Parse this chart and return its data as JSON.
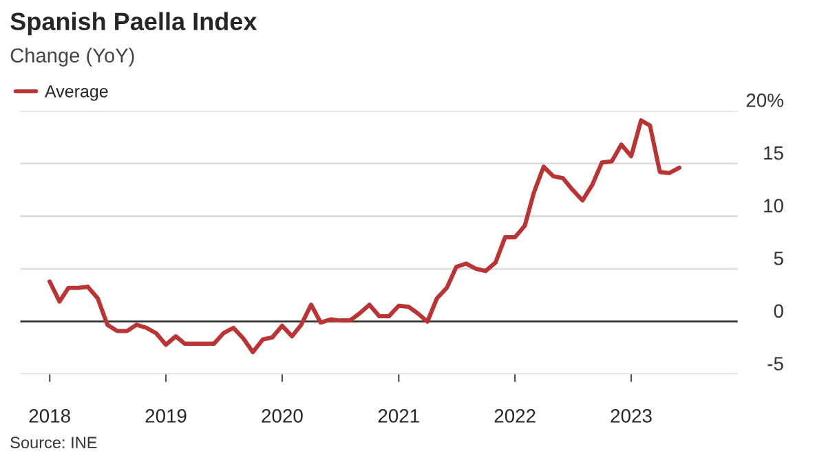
{
  "chart_data": {
    "type": "line",
    "title": "Spanish Paella Index",
    "subtitle": "Change (YoY)",
    "x": [
      "2018-01",
      "2018-02",
      "2018-03",
      "2018-04",
      "2018-05",
      "2018-06",
      "2018-07",
      "2018-08",
      "2018-09",
      "2018-10",
      "2018-11",
      "2018-12",
      "2019-01",
      "2019-02",
      "2019-03",
      "2019-04",
      "2019-05",
      "2019-06",
      "2019-07",
      "2019-08",
      "2019-09",
      "2019-10",
      "2019-11",
      "2019-12",
      "2020-01",
      "2020-02",
      "2020-03",
      "2020-04",
      "2020-05",
      "2020-06",
      "2020-07",
      "2020-08",
      "2020-09",
      "2020-10",
      "2020-11",
      "2020-12",
      "2021-01",
      "2021-02",
      "2021-03",
      "2021-04",
      "2021-05",
      "2021-06",
      "2021-07",
      "2021-08",
      "2021-09",
      "2021-10",
      "2021-11",
      "2021-12",
      "2022-01",
      "2022-02",
      "2022-03",
      "2022-04",
      "2022-05",
      "2022-06",
      "2022-07",
      "2022-08",
      "2022-09",
      "2022-10",
      "2022-11",
      "2022-12",
      "2023-01",
      "2023-02",
      "2023-03",
      "2023-04",
      "2023-05",
      "2023-06"
    ],
    "series": [
      {
        "name": "Average",
        "color": "#b93434",
        "values": [
          3.8,
          1.9,
          3.2,
          3.2,
          3.3,
          2.2,
          -0.3,
          -0.9,
          -0.9,
          -0.3,
          -0.6,
          -1.1,
          -2.2,
          -1.4,
          -2.1,
          -2.1,
          -2.1,
          -2.1,
          -1.1,
          -0.6,
          -1.6,
          -2.9,
          -1.7,
          -1.5,
          -0.4,
          -1.4,
          -0.3,
          1.6,
          -0.1,
          0.2,
          0.1,
          0.1,
          0.8,
          1.6,
          0.5,
          0.5,
          1.5,
          1.4,
          0.8,
          0.0,
          2.2,
          3.2,
          5.2,
          5.5,
          5.0,
          4.8,
          5.6,
          8.0,
          8.0,
          9.1,
          12.2,
          14.7,
          13.8,
          13.6,
          12.5,
          11.5,
          13.0,
          15.1,
          15.2,
          16.8,
          15.7,
          19.1,
          18.6,
          14.2,
          14.1,
          14.6
        ]
      }
    ],
    "xlim": [
      "2017-10",
      "2023-12"
    ],
    "xticks": [
      {
        "value": "2018",
        "label": "2018"
      },
      {
        "value": "2019",
        "label": "2019"
      },
      {
        "value": "2020",
        "label": "2020"
      },
      {
        "value": "2021",
        "label": "2021"
      },
      {
        "value": "2022",
        "label": "2022"
      },
      {
        "value": "2023",
        "label": "2023"
      }
    ],
    "ylim": [
      -5,
      20
    ],
    "yticks": [
      -5,
      0,
      5,
      10,
      15,
      {
        "value": 20,
        "label": "20%"
      }
    ],
    "ref_lines": [
      {
        "axis": "y",
        "value": 0,
        "color": "#333333"
      }
    ],
    "grid": "y",
    "legend": "top left",
    "marker": "none",
    "line_style": "solid",
    "annotations": [
      "Source: INE"
    ]
  }
}
